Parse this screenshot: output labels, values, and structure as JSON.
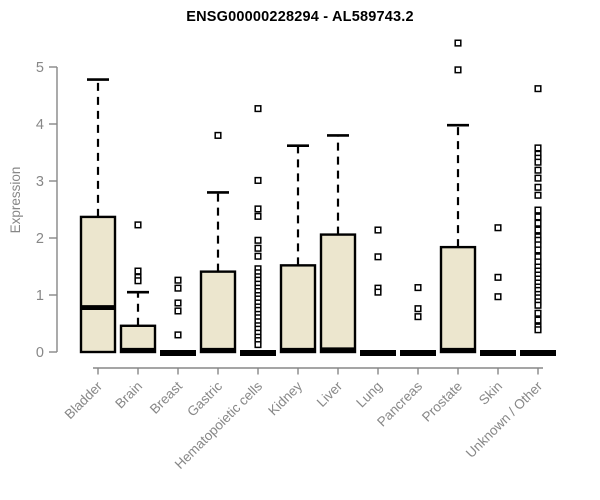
{
  "figure": {
    "background": "#ffffff"
  },
  "chart_data": {
    "type": "boxplot",
    "title": "ENSG00000228294 - AL589743.2",
    "ylabel": "Expression",
    "xlabel": "",
    "ylim": [
      0,
      5
    ],
    "yticks": [
      0,
      1,
      2,
      3,
      4,
      5
    ],
    "grid": false,
    "legend": false,
    "categories": [
      "Bladder",
      "Brain",
      "Breast",
      "Gastric",
      "Hematopoietic cells",
      "Kidney",
      "Liver",
      "Lung",
      "Pancreas",
      "Prostate",
      "Skin",
      "Unknown / Other"
    ],
    "series": [
      {
        "category": "Bladder",
        "q1": 0,
        "median": 0.78,
        "q3": 2.37,
        "whisker_high": 4.78,
        "outliers": []
      },
      {
        "category": "Brain",
        "q1": 0,
        "median": 0.03,
        "q3": 0.46,
        "whisker_high": 1.05,
        "outliers": [
          2.23,
          1.42,
          1.31,
          1.25
        ]
      },
      {
        "category": "Breast",
        "q1": 0,
        "median": 0,
        "q3": 0,
        "whisker_high": null,
        "outliers": [
          1.26,
          1.12,
          0.86,
          0.72,
          0.3
        ]
      },
      {
        "category": "Gastric",
        "q1": 0,
        "median": 0.03,
        "q3": 1.41,
        "whisker_high": 2.8,
        "outliers": [
          3.8
        ]
      },
      {
        "category": "Hematopoietic cells",
        "q1": 0,
        "median": 0,
        "q3": 0,
        "whisker_high": null,
        "outliers": [
          4.27,
          3.01,
          2.51,
          2.38,
          1.96,
          1.82,
          1.68,
          1.46,
          1.39,
          1.32,
          1.26,
          1.19,
          1.12,
          1.06,
          0.99,
          0.93,
          0.86,
          0.79,
          0.73,
          0.66,
          0.6,
          0.53,
          0.46,
          0.4,
          0.33,
          0.26,
          0.2,
          0.13
        ]
      },
      {
        "category": "Kidney",
        "q1": 0,
        "median": 0.03,
        "q3": 1.52,
        "whisker_high": 3.62,
        "outliers": []
      },
      {
        "category": "Liver",
        "q1": 0,
        "median": 0.04,
        "q3": 2.06,
        "whisker_high": 3.8,
        "outliers": []
      },
      {
        "category": "Lung",
        "q1": 0,
        "median": 0,
        "q3": 0,
        "whisker_high": null,
        "outliers": [
          2.14,
          1.67,
          1.12,
          1.05
        ]
      },
      {
        "category": "Pancreas",
        "q1": 0,
        "median": 0,
        "q3": 0,
        "whisker_high": null,
        "outliers": [
          1.13,
          0.76,
          0.62
        ]
      },
      {
        "category": "Prostate",
        "q1": 0,
        "median": 0.03,
        "q3": 1.84,
        "whisker_high": 3.98,
        "outliers": [
          5.42,
          4.95
        ]
      },
      {
        "category": "Skin",
        "q1": 0,
        "median": 0,
        "q3": 0,
        "whisker_high": null,
        "outliers": [
          2.18,
          1.31,
          0.97
        ]
      },
      {
        "category": "Unknown / Other",
        "q1": 0,
        "median": 0,
        "q3": 0,
        "whisker_high": null,
        "outliers": [
          4.62,
          3.58,
          3.47,
          3.4,
          3.33,
          3.19,
          3.05,
          2.89,
          2.75,
          2.49,
          2.37,
          2.26,
          2.14,
          2.02,
          1.96,
          1.88,
          1.79,
          1.67,
          1.58,
          1.49,
          1.42,
          1.35,
          1.28,
          1.21,
          1.14,
          1.08,
          1.01,
          0.95,
          0.88,
          0.82,
          0.68,
          0.56,
          0.44,
          0.39
        ]
      }
    ],
    "colors": {
      "box_fill": "#ece6ce",
      "box_border": "#000000",
      "median": "#000000",
      "whisker": "#000000",
      "axis": "#878787",
      "tick_label": "#878787",
      "title": "#000000",
      "outlier_fill": "#ffffff",
      "outlier_border": "#000000"
    }
  }
}
